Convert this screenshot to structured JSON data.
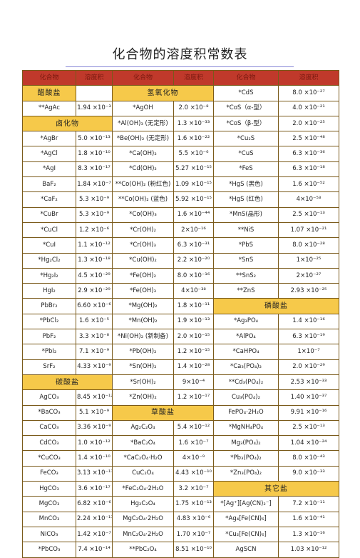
{
  "title": "化合物的溶度积常数表",
  "header": [
    "化合物",
    "溶度积",
    "化合物",
    "溶度积",
    "化合物",
    "溶度积"
  ],
  "rows": [
    [
      {
        "t": "醋酸盐",
        "sec": true
      },
      "",
      {
        "t": "氢氧化物",
        "sec": true,
        "span": 2
      },
      "*CdS",
      "8.0 ×10⁻²⁷"
    ],
    [
      "**AgAc",
      "1.94 ×10⁻³",
      "*AgOH",
      "2.0 ×10⁻⁸",
      "*CoS（α-型）",
      "4.0 ×10⁻²¹"
    ],
    [
      {
        "t": "卤化物",
        "sec": true,
        "span": 2
      },
      "*Al(OH)₃ (无定形)",
      "1.3 ×10⁻³³",
      "*CoS（β-型）",
      "2.0 ×10⁻²⁵"
    ],
    [
      "*AgBr",
      "5.0 ×10⁻¹³",
      "*Be(OH)₂ (无定形)",
      "1.6 ×10⁻²²",
      "*Cu₂S",
      "2.5 ×10⁻⁴⁸"
    ],
    [
      "*AgCl",
      "1.8 ×10⁻¹⁰",
      "*Ca(OH)₂",
      "5.5 ×10⁻⁶",
      "*CuS",
      "6.3 ×10⁻³⁶"
    ],
    [
      "*AgI",
      "8.3 ×10⁻¹⁷",
      "*Cd(OH)₂",
      "5.27 ×10⁻¹⁵",
      "*FeS",
      "6.3 ×10⁻¹⁸"
    ],
    [
      "BaF₂",
      "1.84 ×10⁻⁷",
      "**Co(OH)₂ (粉红色)",
      "1.09 ×10⁻¹⁵",
      "*HgS (黑色)",
      "1.6 ×10⁻⁵²"
    ],
    [
      "*CaF₂",
      "5.3 ×10⁻⁹",
      "**Co(OH)₂ (蓝色)",
      "5.92 ×10⁻¹⁵",
      "*HgS (红色)",
      "4×10⁻⁵³"
    ],
    [
      "*CuBr",
      "5.3 ×10⁻⁹",
      "*Co(OH)₃",
      "1.6 ×10⁻⁴⁴",
      "*MnS(晶形)",
      "2.5 ×10⁻¹³"
    ],
    [
      "*CuCl",
      "1.2 ×10⁻⁶",
      "*Cr(OH)₂",
      "2×10⁻¹⁶",
      "**NiS",
      "1.07 ×10⁻²¹"
    ],
    [
      "*CuI",
      "1.1 ×10⁻¹²",
      "*Cr(OH)₃",
      "6.3 ×10⁻³¹",
      "*PbS",
      "8.0 ×10⁻²⁸"
    ],
    [
      "*Hg₂Cl₂",
      "1.3 ×10⁻¹⁸",
      "*Cu(OH)₂",
      "2.2 ×10⁻²⁰",
      "*SnS",
      "1×10⁻²⁵"
    ],
    [
      "*Hg₂I₂",
      "4.5 ×10⁻²⁹",
      "*Fe(OH)₂",
      "8.0 ×10⁻¹⁶",
      "**SnS₂",
      "2×10⁻²⁷"
    ],
    [
      "HgI₂",
      "2.9 ×10⁻²⁹",
      "*Fe(OH)₃",
      "4×10⁻³⁸",
      "**ZnS",
      "2.93 ×10⁻²⁵"
    ],
    [
      "PbBr₂",
      "6.60 ×10⁻⁶",
      "*Mg(OH)₂",
      "1.8 ×10⁻¹¹",
      {
        "t": "磷酸盐",
        "sec": true,
        "span": 2
      }
    ],
    [
      "*PbCl₂",
      "1.6 ×10⁻⁵",
      "*Mn(OH)₂",
      "1.9 ×10⁻¹³",
      "*Ag₃PO₄",
      "1.4 ×10⁻¹⁶"
    ],
    [
      "PbF₂",
      "3.3 ×10⁻⁸",
      "*Ni(OH)₂ (新制备)",
      "2.0 ×10⁻¹⁵",
      "*AlPO₄",
      "6.3 ×10⁻¹⁹"
    ],
    [
      "*PbI₂",
      "7.1 ×10⁻⁹",
      "*Pb(OH)₂",
      "1.2 ×10⁻¹⁵",
      "*CaHPO₄",
      "1×10⁻⁷"
    ],
    [
      "SrF₂",
      "4.33 ×10⁻⁹",
      "*Sn(OH)₂",
      "1.4 ×10⁻²⁸",
      "*Ca₃(PO₄)₂",
      "2.0 ×10⁻²⁹"
    ],
    [
      {
        "t": "碳酸盐",
        "sec": true,
        "span": 2
      },
      "*Sr(OH)₂",
      "9×10⁻⁴",
      "**Cd₃(PO₄)₂",
      "2.53 ×10⁻³³"
    ],
    [
      "AgCO₃",
      "8.45 ×10⁻¹²",
      "*Zn(OH)₂",
      "1.2 ×10⁻¹⁷",
      "Cu₃(PO₄)₂",
      "1.40 ×10⁻³⁷"
    ],
    [
      "*BaCO₃",
      "5.1 ×10⁻⁹",
      {
        "t": "草酸盐",
        "sec": true,
        "span": 2
      },
      "FePO₄·2H₂O",
      "9.91 ×10⁻¹⁶"
    ],
    [
      "CaCO₃",
      "3.36 ×10⁻⁹",
      "Ag₂C₂O₄",
      "5.4 ×10⁻¹²",
      "*MgNH₄PO₄",
      "2.5 ×10⁻¹³"
    ],
    [
      "CdCO₃",
      "1.0 ×10⁻¹²",
      "*BaC₂O₄",
      "1.6 ×10⁻⁷",
      "Mg₃(PO₄)₂",
      "1.04 ×10⁻²⁴"
    ],
    [
      "*CuCO₃",
      "1.4 ×10⁻¹⁰",
      "*CaC₂O₄·H₂O",
      "4×10⁻⁹",
      "*Pb₃(PO₄)₂",
      "8.0 ×10⁻⁴³"
    ],
    [
      "FeCO₃",
      "3.13 ×10⁻¹¹",
      "CuC₂O₄",
      "4.43 ×10⁻¹⁰",
      "*Zn₃(PO₄)₂",
      "9.0 ×10⁻³³"
    ],
    [
      "HgCO₃",
      "3.6 ×10⁻¹⁷",
      "*FeC₂O₄·2H₂O",
      "3.2 ×10⁻⁷",
      {
        "t": "其它盐",
        "sec": true,
        "span": 2
      }
    ],
    [
      "MgCO₃",
      "6.82 ×10⁻⁶",
      "Hg₂C₂O₄",
      "1.75 ×10⁻¹³",
      "*[Ag⁺][Ag(CN)₂⁻]",
      "7.2 ×10⁻¹¹"
    ],
    [
      "MnCO₃",
      "2.24 ×10⁻¹¹",
      "MgC₂O₄·2H₂O",
      "4.83 ×10⁻⁶",
      "*Ag₄[Fe(CN)₆]",
      "1.6 ×10⁻⁴¹"
    ],
    [
      "NiCO₃",
      "1.42 ×10⁻⁷",
      "MnC₂O₄·2H₂O",
      "1.70 ×10⁻⁷",
      "*Cu₂[Fe(CN)₆]",
      "1.3 ×10⁻¹⁶"
    ],
    [
      "*PbCO₃",
      "7.4 ×10⁻¹⁴",
      "**PbC₂O₄",
      "8.51 ×10⁻¹⁰",
      "AgSCN",
      "1.03 ×10⁻¹²"
    ]
  ]
}
